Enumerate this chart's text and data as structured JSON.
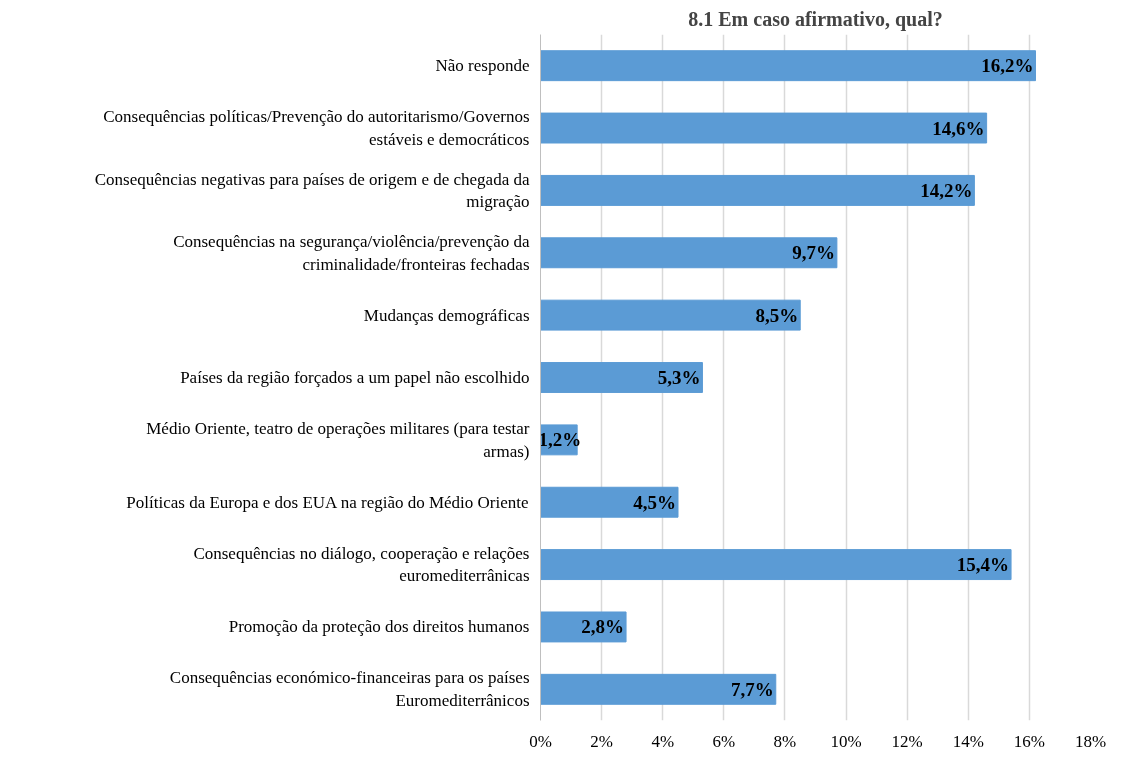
{
  "chart_data": {
    "type": "bar",
    "orientation": "horizontal",
    "title": "8.1 Em caso afirmativo, qual?",
    "categories": [
      "Não responde",
      "Consequências políticas/Prevenção do autoritarismo/Governos estáveis e democráticos",
      "Consequências negativas para países de origem e de chegada da migração",
      "Consequências na segurança/violência/prevenção da criminalidade/fronteiras fechadas",
      "Mudanças demográficas",
      "Países da região forçados a um papel não escolhido",
      "Médio Oriente, teatro de operações militares (para testar armas)",
      "Políticas da Europa e dos EUA na região do Médio Oriente",
      "Consequências no diálogo, cooperação e relações euromediterrânicas",
      "Promoção da proteção dos direitos humanos",
      "Consequências económico-financeiras para os países Euromediterrânicos"
    ],
    "values": [
      16.2,
      14.6,
      14.2,
      9.7,
      8.5,
      5.3,
      1.2,
      4.5,
      15.4,
      2.8,
      7.7
    ],
    "value_labels": [
      "16,2%",
      "14,6%",
      "14,2%",
      "9,7%",
      "8,5%",
      "5,3%",
      "1,2%",
      "4,5%",
      "15,4%",
      "2,8%",
      "7,7%"
    ],
    "color": "#5b9bd5",
    "xlim": [
      0,
      18
    ],
    "xticks": [
      {
        "value": 0,
        "label": "0%"
      },
      {
        "value": 2,
        "label": "2%"
      },
      {
        "value": 4,
        "label": "4%"
      },
      {
        "value": 6,
        "label": "6%"
      },
      {
        "value": 8,
        "label": "8%"
      },
      {
        "value": 10,
        "label": "10%"
      },
      {
        "value": 12,
        "label": "12%"
      },
      {
        "value": 14,
        "label": "14%"
      },
      {
        "value": 16,
        "label": "16%"
      },
      {
        "value": 18,
        "label": "18%"
      }
    ],
    "grid": "x"
  }
}
